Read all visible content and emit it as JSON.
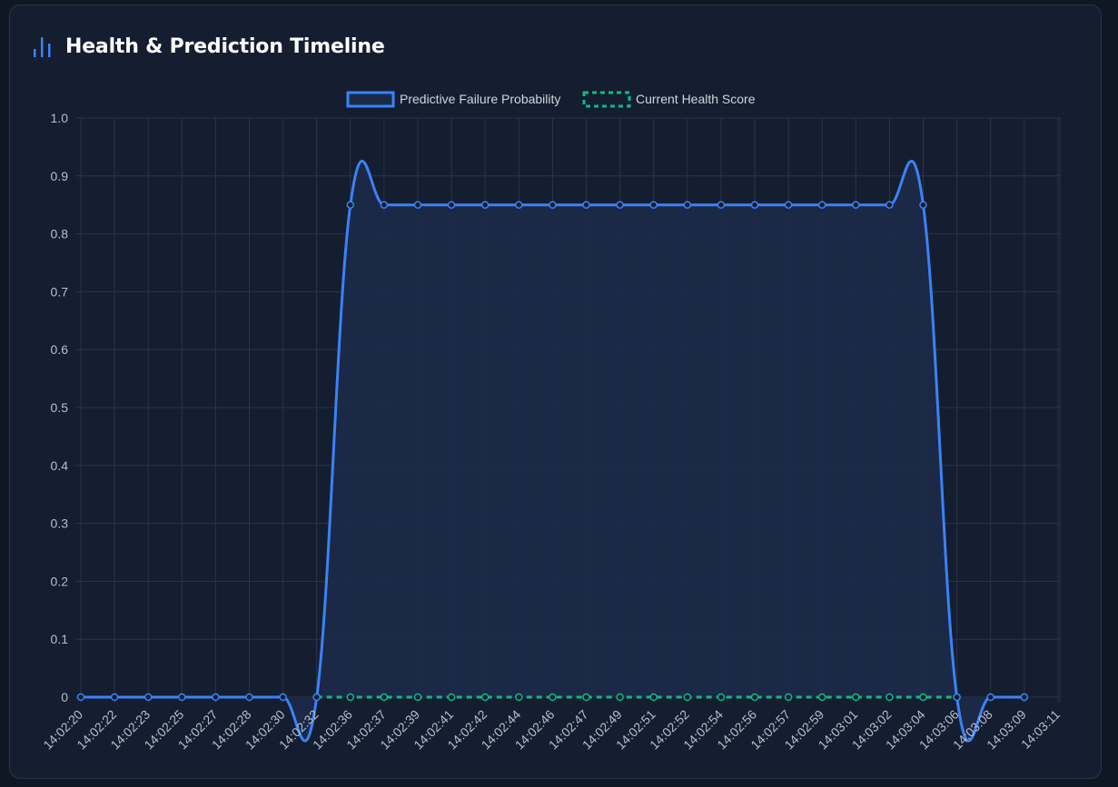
{
  "header": {
    "title": "Health & Prediction Timeline",
    "icon": "bar-chart-icon"
  },
  "colors": {
    "prediction": "#3b82f6",
    "prediction_fill": "#1c2a4a",
    "health": "#10b981",
    "grid": "#2a3445",
    "text": "#b6bfcc"
  },
  "chart_data": {
    "type": "line",
    "title": "",
    "xlabel": "",
    "ylabel": "",
    "ylim": [
      0,
      1
    ],
    "yticks": [
      "0",
      "0.1",
      "0.2",
      "0.3",
      "0.4",
      "0.5",
      "0.6",
      "0.7",
      "0.8",
      "0.9",
      "1.0"
    ],
    "grid": true,
    "legend_position": "top",
    "categories": [
      "14:02:20",
      "14:02:22",
      "14:02:23",
      "14:02:25",
      "14:02:27",
      "14:02:28",
      "14:02:30",
      "14:02:32",
      "14:02:36",
      "14:02:37",
      "14:02:39",
      "14:02:41",
      "14:02:42",
      "14:02:44",
      "14:02:46",
      "14:02:47",
      "14:02:49",
      "14:02:51",
      "14:02:52",
      "14:02:54",
      "14:02:56",
      "14:02:57",
      "14:02:59",
      "14:03:01",
      "14:03:02",
      "14:03:04",
      "14:03:06",
      "14:03:08",
      "14:03:09",
      "14:03:11"
    ],
    "series": [
      {
        "name": "Predictive Failure Probability",
        "style": "solid",
        "fill": true,
        "values": [
          0,
          0,
          0,
          0,
          0,
          0,
          0,
          0,
          0.85,
          0.85,
          0.85,
          0.85,
          0.85,
          0.85,
          0.85,
          0.85,
          0.85,
          0.85,
          0.85,
          0.85,
          0.85,
          0.85,
          0.85,
          0.85,
          0.85,
          0.85,
          0,
          0,
          0,
          null
        ]
      },
      {
        "name": "Current Health Score",
        "style": "dashed",
        "fill": false,
        "values": [
          null,
          null,
          null,
          null,
          null,
          null,
          null,
          0,
          0,
          0,
          0,
          0,
          0,
          0,
          0,
          0,
          0,
          0,
          0,
          0,
          0,
          0,
          0,
          0,
          0,
          0,
          0,
          null,
          null,
          null
        ]
      }
    ]
  }
}
